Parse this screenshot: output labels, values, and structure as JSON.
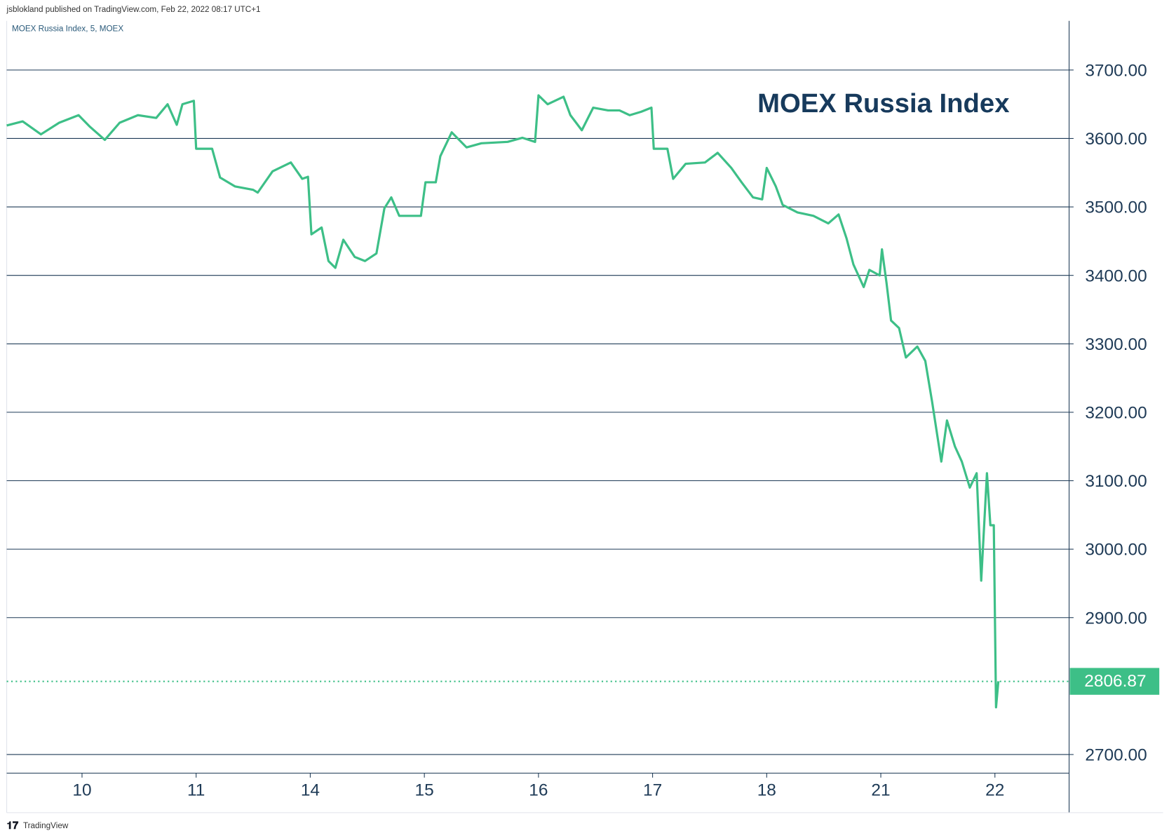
{
  "header": "jsblokland published on TradingView.com, Feb 22, 2022 08:17 UTC+1",
  "footer": "TradingView",
  "chart_data": {
    "type": "line",
    "title": "MOEX Russia Index",
    "legend_text": "MOEX Russia Index, 5, MOEX",
    "grid": true,
    "xlim": [
      -0.66,
      8.65
    ],
    "xticks": [
      {
        "value": 0,
        "label": "10"
      },
      {
        "value": 1,
        "label": "11"
      },
      {
        "value": 2,
        "label": "14"
      },
      {
        "value": 3,
        "label": "15"
      },
      {
        "value": 4,
        "label": "16"
      },
      {
        "value": 5,
        "label": "17"
      },
      {
        "value": 6,
        "label": "18"
      },
      {
        "value": 7,
        "label": "21"
      },
      {
        "value": 8,
        "label": "22"
      }
    ],
    "ylim": [
      2672.8,
      3771.8
    ],
    "yticks": [
      {
        "value": 2700,
        "label": "2700.00"
      },
      {
        "value": 2900,
        "label": "2900.00"
      },
      {
        "value": 3000,
        "label": "3000.00"
      },
      {
        "value": 3100,
        "label": "3100.00"
      },
      {
        "value": 3200,
        "label": "3200.00"
      },
      {
        "value": 3300,
        "label": "3300.00"
      },
      {
        "value": 3400,
        "label": "3400.00"
      },
      {
        "value": 3500,
        "label": "3500.00"
      },
      {
        "value": 3600,
        "label": "3600.00"
      },
      {
        "value": 3700,
        "label": "3700.00"
      }
    ],
    "last_price": 2806.87,
    "series": [
      {
        "name": "MOEX Russia Index",
        "color": "#3dbf87",
        "x": [
          -0.66,
          -0.52,
          -0.36,
          -0.2,
          -0.03,
          0.07,
          0.2,
          0.33,
          0.49,
          0.65,
          0.75,
          0.83,
          0.88,
          0.98,
          1.0,
          1.14,
          1.21,
          1.34,
          1.5,
          1.54,
          1.67,
          1.83,
          1.93,
          1.98,
          2.01,
          2.1,
          2.16,
          2.22,
          2.29,
          2.39,
          2.48,
          2.58,
          2.65,
          2.71,
          2.78,
          2.88,
          2.97,
          3.01,
          3.1,
          3.14,
          3.24,
          3.37,
          3.5,
          3.73,
          3.86,
          3.97,
          4.0,
          4.08,
          4.22,
          4.28,
          4.38,
          4.48,
          4.61,
          4.71,
          4.8,
          4.9,
          4.99,
          5.01,
          5.13,
          5.18,
          5.29,
          5.46,
          5.57,
          5.69,
          5.78,
          5.88,
          5.96,
          6.0,
          6.08,
          6.14,
          6.27,
          6.41,
          6.54,
          6.63,
          6.7,
          6.76,
          6.85,
          6.9,
          6.99,
          7.01,
          7.05,
          7.09,
          7.16,
          7.22,
          7.32,
          7.39,
          7.45,
          7.53,
          7.58,
          7.65,
          7.71,
          7.78,
          7.84,
          7.88,
          7.93,
          7.96,
          7.99,
          8.01,
          8.03
        ],
        "values": [
          3619,
          3625,
          3606,
          3623,
          3634,
          3617,
          3598,
          3623,
          3634,
          3630,
          3650,
          3620,
          3650,
          3655,
          3585,
          3585,
          3543,
          3530,
          3525,
          3521,
          3552,
          3565,
          3541,
          3544,
          3460,
          3470,
          3421,
          3411,
          3452,
          3427,
          3421,
          3432,
          3498,
          3514,
          3487,
          3487,
          3487,
          3536,
          3536,
          3574,
          3609,
          3587,
          3593,
          3595,
          3601,
          3595,
          3663,
          3650,
          3661,
          3634,
          3612,
          3645,
          3641,
          3641,
          3634,
          3639,
          3645,
          3585,
          3585,
          3541,
          3563,
          3565,
          3579,
          3557,
          3536,
          3514,
          3511,
          3557,
          3530,
          3503,
          3492,
          3487,
          3476,
          3489,
          3454,
          3416,
          3383,
          3408,
          3400,
          3438,
          3389,
          3334,
          3323,
          3280,
          3296,
          3275,
          3215,
          3128,
          3188,
          3150,
          3128,
          3090,
          3111,
          2954,
          3111,
          3035,
          3035,
          2769,
          2807
        ]
      }
    ]
  }
}
